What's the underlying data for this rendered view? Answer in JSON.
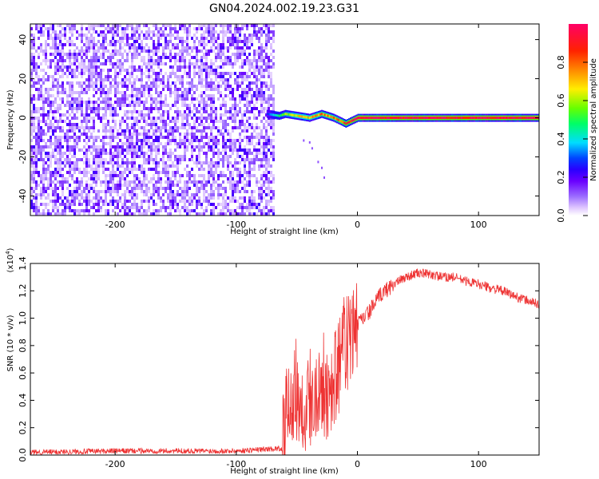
{
  "title": "GN04.2024.002.19.23.G31",
  "colors": {
    "snr_line": "#ee3333",
    "axis": "#000000",
    "colormap": [
      "#ffffff",
      "#e0c8ff",
      "#9b6cff",
      "#6a00ff",
      "#2a00ff",
      "#0044ff",
      "#00ddff",
      "#00ff66",
      "#66ff00",
      "#ffee00",
      "#ff8800",
      "#ff2200",
      "#ff0066"
    ]
  },
  "chart_data": [
    {
      "type": "heatmap",
      "title": "GN04.2024.002.19.23.G31",
      "xlabel": "Height of straight line (km)",
      "ylabel": "Frequency (Hz)",
      "xlim": [
        -270,
        150
      ],
      "ylim": [
        -50,
        48
      ],
      "x_ticks": [
        -200,
        -100,
        0,
        100
      ],
      "y_ticks": [
        40,
        20,
        0,
        -20,
        -40
      ],
      "colorbar": {
        "label": "Normalized spectral amplitude",
        "range": [
          0,
          1
        ],
        "ticks": [
          "0.0",
          "0.2",
          "0.4",
          "0.6",
          "0.8"
        ]
      },
      "noise_region": {
        "x_range": [
          -270,
          -70
        ],
        "typical_amplitude": 0.2
      },
      "signal_track": {
        "x": [
          -75,
          -65,
          -60,
          -50,
          -40,
          -30,
          -20,
          -10,
          0,
          20,
          40,
          60,
          80,
          100,
          120,
          150
        ],
        "frequency": [
          2,
          1,
          2,
          1,
          0,
          2,
          0,
          -3,
          0,
          0,
          0,
          0,
          0,
          0,
          0,
          0
        ],
        "amplitude": [
          0.3,
          0.5,
          0.6,
          0.7,
          0.75,
          0.8,
          0.8,
          0.9,
          1.0,
          1.0,
          1.0,
          1.0,
          1.0,
          1.0,
          1.0,
          1.0
        ]
      }
    },
    {
      "type": "line",
      "title": "",
      "xlabel": "Height of straight line (km)",
      "ylabel": "SNR (10 * v/v)",
      "y_multiplier": "(x10",
      "y_multiplier_exp": "4",
      "y_multiplier_close": ")",
      "xlim": [
        -270,
        150
      ],
      "ylim": [
        0,
        1.4
      ],
      "x_ticks": [
        -200,
        -100,
        0,
        100
      ],
      "y_ticks": [
        "0.0",
        "0.2",
        "0.4",
        "0.6",
        "0.8",
        "1.0",
        "1.2",
        "1.4"
      ],
      "series": [
        {
          "x": [
            -270,
            -200,
            -150,
            -100,
            -62,
            -58,
            -55,
            -50,
            -45,
            -40,
            -35,
            -30,
            -25,
            -20,
            -15,
            -10,
            -5,
            0,
            10,
            20,
            30,
            40,
            50,
            60,
            70,
            80,
            90,
            100,
            110,
            120,
            130,
            140,
            150
          ],
          "y": [
            0.02,
            0.03,
            0.03,
            0.03,
            0.05,
            0.3,
            0.4,
            0.45,
            0.35,
            0.4,
            0.45,
            0.5,
            0.45,
            0.55,
            0.65,
            0.8,
            0.85,
            0.95,
            1.05,
            1.18,
            1.25,
            1.3,
            1.33,
            1.32,
            1.3,
            1.3,
            1.27,
            1.25,
            1.22,
            1.2,
            1.16,
            1.13,
            1.1
          ]
        }
      ]
    }
  ]
}
